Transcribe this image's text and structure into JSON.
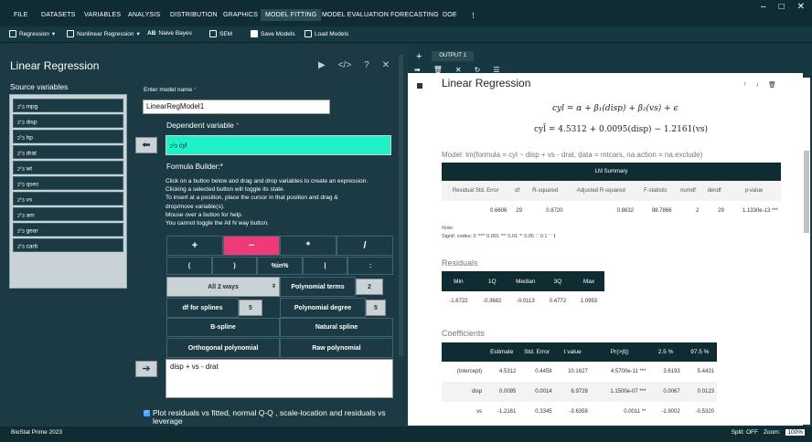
{
  "menu": {
    "items": [
      "FILE",
      "DATASETS",
      "VARIABLES",
      "ANALYSIS",
      "DISTRIBUTION",
      "GRAPHICS",
      "MODEL FITTING",
      "MODEL EVALUATION",
      "FORECASTING",
      "DOE"
    ],
    "more": "⋮",
    "active": "MODEL FITTING"
  },
  "window": {
    "minimize": "–",
    "maximize": "□",
    "close": "✕"
  },
  "toolbar": {
    "regression": "Regression",
    "nonlinear": "Nonlinear Regression",
    "naive_bayes": "Naive Bayes",
    "naive_prefix": "AB",
    "sem": "SEM",
    "save_models": "Save Models",
    "load_models": "Load Models"
  },
  "left": {
    "title": "Linear Regression",
    "source_label": "Source variables",
    "variables": [
      "mpg",
      "disp",
      "hp",
      "drat",
      "wt",
      "qsec",
      "vs",
      "am",
      "gear",
      "carb"
    ],
    "var_prefix_main": "2",
    "var_prefix_sup": "1",
    "var_prefix_end": "3",
    "model_name_label": "Enter model name",
    "required_mark": "*",
    "model_name_value": "LinearRegModel1",
    "dependent_label": "Dependent variable",
    "dependent_value": "cyl",
    "formula_label": "Formula Builder:*",
    "help_lines": [
      "Click on a button below and drag and drop variables to create an expression.",
      "Clicking a selected button will toggle its state.",
      "To insert at a position, place the cursor in that position and drag &",
      "drop/move variable(s).",
      "Mouse over a button for help.",
      "You cannot toggle the All N way button."
    ],
    "ops_row1": [
      "+",
      "−",
      "*",
      "/"
    ],
    "ops_row2": [
      "(",
      ")",
      "%in%",
      "|",
      ":"
    ],
    "all_ways": "All 2 ways",
    "poly_terms": "Polynomial terms",
    "poly_terms_value": "2",
    "df_splines": "df for splines",
    "df_value": "5",
    "poly_degree": "Polynomial degree",
    "poly_degree_value": "5",
    "bspline": "B-spline",
    "natural_spline": "Natural spline",
    "orthogonal": "Orthogonal polynomial",
    "raw_poly": "Raw polynomial",
    "formula_value": "disp   + vs   - drat",
    "plot_check": "Plot residuals vs fitted, normal Q-Q , scale-location and residuals vs leverage"
  },
  "status": {
    "app": "BioStat Prime 2023",
    "split": "Split: OFF",
    "zoom_label": "Zoom:",
    "zoom": "100%"
  },
  "output": {
    "tab": "OUTPUT 1",
    "title": "Linear Regression",
    "eq1": "cyl = α + β₁(disp) + β₂(vs) + ϵ",
    "eq2": "cyl̂ = 4.5312 + 0.0095(disp) − 1.2161(vs)",
    "model_line": "Model: lm(formula = cyl ~ disp + vs - drat, data = mtcars, na.action = na.exclude)",
    "lm_title": "LM Summary",
    "lm_cols": [
      "Residual Std. Error",
      "df",
      "R-squared",
      "Adjusted R-squared",
      "F-statistic",
      "numdf",
      "dendf",
      "p-value"
    ],
    "lm_vals": [
      "0.6606",
      "29",
      "0.8720",
      "0.8632",
      "98.7866",
      "2",
      "29",
      "1.1330e-13 ***"
    ],
    "note": "Note:",
    "signif": "Signif. codes: 0 '***' 0.001 '**' 0.01 '*' 0.05 '.' 0.1 ' ' 1",
    "residuals_h": "Residuals",
    "res_cols": [
      "Min",
      "1Q",
      "Median",
      "3Q",
      "Max"
    ],
    "res_vals": [
      "-1.6722",
      "-0.3682",
      "-0.0113",
      "0.4772",
      "1.0953"
    ],
    "coef_h": "Coefficients",
    "coef_cols": [
      "",
      "Estimate",
      "Std. Error",
      "t value",
      "Pr(>|t|)",
      "2.5 %",
      "97.5 %"
    ],
    "coef_rows": [
      [
        "(Intercept)",
        "4.5312",
        "0.4459",
        "10.1627",
        "4.5700e-11 ***",
        "3.6193",
        "5.4431"
      ],
      [
        "disp",
        "0.0095",
        "0.0014",
        "6.9728",
        "1.1500e-07 ***",
        "0.0067",
        "0.0123"
      ],
      [
        "vs",
        "-1.2161",
        "0.3345",
        "-3.6358",
        "0.0011 **",
        "-1.9002",
        "-0.5320"
      ]
    ]
  }
}
